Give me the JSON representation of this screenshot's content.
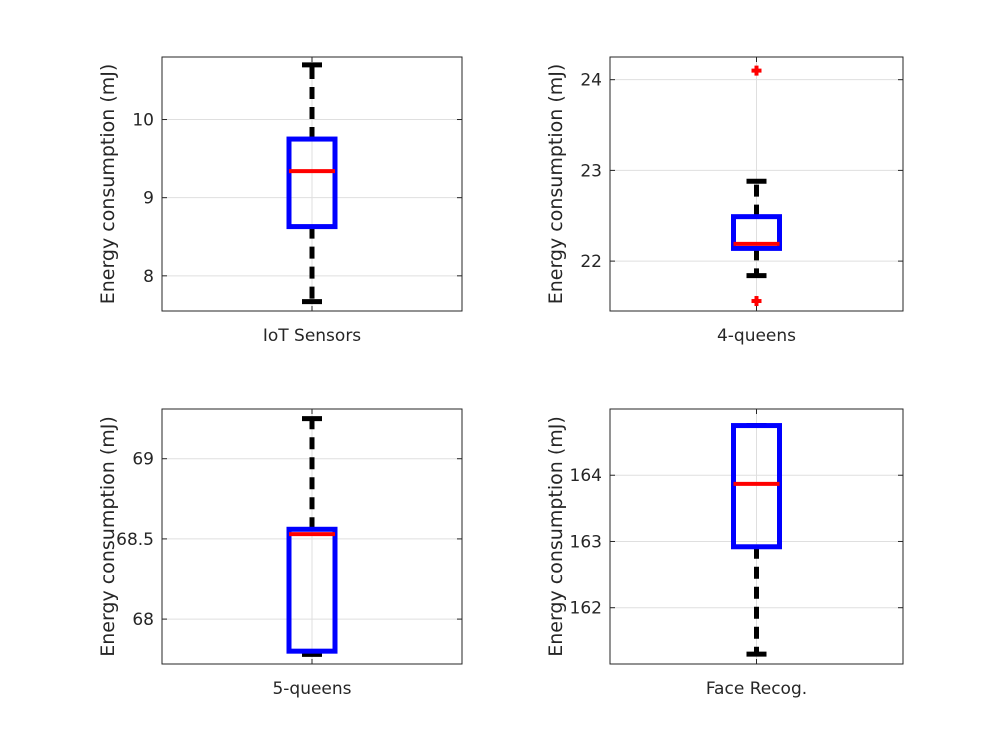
{
  "colors": {
    "box": "#0000ff",
    "median": "#ff0000",
    "whisker": "#000000",
    "outlier": "#ff0000",
    "grid": "#dfdfdf",
    "axis": "#262626"
  },
  "chart_data": [
    {
      "type": "box",
      "category": "IoT Sensors",
      "ylabel": "Energy consumption (mJ)",
      "ylim": [
        7.55,
        10.8
      ],
      "yticks": [
        8,
        9,
        10
      ],
      "ytick_labels": [
        "8",
        "9",
        "10"
      ],
      "whisker_low": 7.67,
      "q1": 8.63,
      "median": 9.34,
      "q3": 9.75,
      "whisker_high": 10.7,
      "outliers": []
    },
    {
      "type": "box",
      "category": "4-queens",
      "ylabel": "Energy consumption (mJ)",
      "ylim": [
        21.45,
        24.25
      ],
      "yticks": [
        22,
        23,
        24
      ],
      "ytick_labels": [
        "22",
        "23",
        "24"
      ],
      "whisker_low": 21.84,
      "q1": 22.14,
      "median": 22.19,
      "q3": 22.49,
      "whisker_high": 22.88,
      "outliers": [
        24.1,
        21.56
      ]
    },
    {
      "type": "box",
      "category": "5-queens",
      "ylabel": "Energy consumption (mJ)",
      "ylim": [
        67.72,
        69.31
      ],
      "yticks": [
        68,
        68.5,
        69
      ],
      "ytick_labels": [
        "68",
        "68.5",
        "69"
      ],
      "whisker_low": 67.78,
      "q1": 67.8,
      "median": 68.53,
      "q3": 68.56,
      "whisker_high": 69.25,
      "outliers": []
    },
    {
      "type": "box",
      "category": "Face Recog.",
      "ylabel": "Energy consumption (mJ)",
      "ylim": [
        161.15,
        165.0
      ],
      "yticks": [
        162,
        163,
        164
      ],
      "ytick_labels": [
        "162",
        "163",
        "164"
      ],
      "whisker_low": 161.3,
      "q1": 162.92,
      "median": 163.87,
      "q3": 164.75,
      "whisker_high": 164.75,
      "outliers": []
    }
  ]
}
